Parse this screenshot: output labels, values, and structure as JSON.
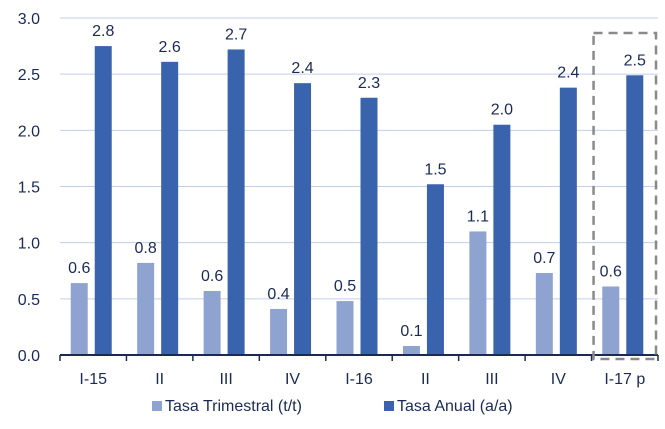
{
  "chart_data": {
    "type": "bar",
    "categories": [
      "I-15",
      "II",
      "III",
      "IV",
      "I-16",
      "II",
      "III",
      "IV",
      "I-17 p"
    ],
    "series": [
      {
        "name": "Tasa Trimestral (t/t)",
        "values": [
          0.6,
          0.8,
          0.6,
          0.4,
          0.5,
          0.1,
          1.1,
          0.7,
          0.6
        ],
        "bar_values": [
          0.64,
          0.82,
          0.57,
          0.41,
          0.48,
          0.08,
          1.1,
          0.73,
          0.61
        ],
        "color": "#8fa3d1"
      },
      {
        "name": "Tasa Anual (a/a)",
        "values": [
          2.8,
          2.6,
          2.7,
          2.4,
          2.3,
          1.5,
          2.0,
          2.4,
          2.5
        ],
        "bar_values": [
          2.75,
          2.61,
          2.72,
          2.42,
          2.29,
          1.52,
          2.05,
          2.38,
          2.49
        ],
        "color": "#3a63ad"
      }
    ],
    "yticks": [
      "0.0",
      "0.5",
      "1.0",
      "1.5",
      "2.0",
      "2.5",
      "3.0"
    ],
    "ylim": [
      0,
      3.0
    ],
    "grid": true,
    "legend_position": "bottom",
    "highlight_category": "I-17 p"
  }
}
